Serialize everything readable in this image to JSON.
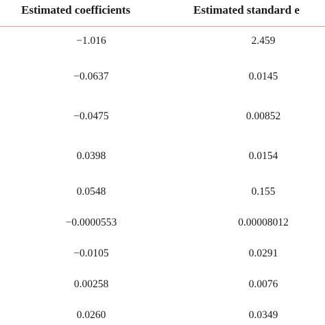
{
  "table": {
    "header": [
      "Estimated coefficients",
      "Estimated standard e"
    ],
    "rows": [
      [
        "−1.016",
        "2.459"
      ],
      [
        "−0.0637",
        "0.0145"
      ],
      [
        "−0.0475",
        "0.00852"
      ],
      [
        "0.0398",
        "0.0154"
      ],
      [
        "0.0548",
        "0.155"
      ],
      [
        "−0.0000553",
        "0.00008012"
      ],
      [
        "−0.0105",
        "0.0291"
      ],
      [
        "0.00258",
        "0.0076"
      ],
      [
        "0.0260",
        "0.0349"
      ]
    ]
  }
}
